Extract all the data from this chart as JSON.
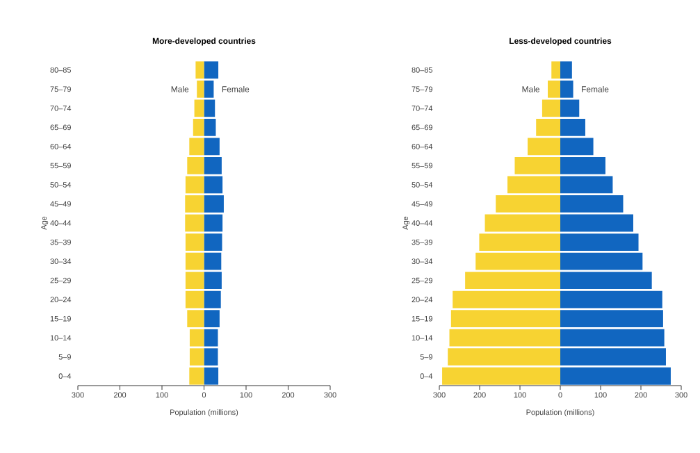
{
  "chart_data": [
    {
      "type": "bar",
      "orientation": "horizontal",
      "stacked": true,
      "title": "More-developed countries",
      "xlabel": "Population (millions)",
      "ylabel": "Age",
      "categories": [
        "80–85",
        "75–79",
        "70–74",
        "65–69",
        "60–64",
        "55–59",
        "50–54",
        "45–49",
        "40–44",
        "35–39",
        "30–34",
        "25–29",
        "20–24",
        "15–19",
        "10–14",
        "5–9",
        "0–4"
      ],
      "series": [
        {
          "name": "Male",
          "color": "#f7d332",
          "values": [
            -20,
            -17,
            -23,
            -26,
            -35,
            -40,
            -44,
            -45,
            -45,
            -44,
            -44,
            -44,
            -44,
            -40,
            -34,
            -34,
            -35
          ]
        },
        {
          "name": "Female",
          "color": "#1166c0",
          "values": [
            34,
            23,
            26,
            28,
            37,
            42,
            44,
            47,
            44,
            43,
            41,
            42,
            40,
            37,
            33,
            33,
            34
          ]
        }
      ],
      "xlim": [
        -300,
        300
      ],
      "xticks": [
        {
          "value": -300,
          "label": "300"
        },
        {
          "value": -200,
          "label": "200"
        },
        {
          "value": -100,
          "label": "100"
        },
        0,
        100,
        200,
        300
      ]
    },
    {
      "type": "bar",
      "orientation": "horizontal",
      "stacked": true,
      "title": "Less-developed countries",
      "xlabel": "Population (millions)",
      "ylabel": "Age",
      "categories": [
        "80–85",
        "75–79",
        "70–74",
        "65–69",
        "60–64",
        "55–59",
        "50–54",
        "45–49",
        "40–44",
        "35–39",
        "30–34",
        "25–29",
        "20–24",
        "15–19",
        "10–14",
        "5–9",
        "0–4"
      ],
      "series": [
        {
          "name": "Male",
          "color": "#f7d332",
          "values": [
            -22,
            -31,
            -45,
            -60,
            -81,
            -113,
            -131,
            -160,
            -187,
            -201,
            -210,
            -236,
            -267,
            -271,
            -275,
            -279,
            -293
          ]
        },
        {
          "name": "Female",
          "color": "#1166c0",
          "values": [
            29,
            32,
            47,
            62,
            82,
            112,
            130,
            156,
            181,
            194,
            204,
            227,
            253,
            255,
            258,
            262,
            274
          ]
        }
      ],
      "xlim": [
        -300,
        300
      ],
      "xticks": [
        {
          "value": -300,
          "label": "300"
        },
        {
          "value": -200,
          "label": "200"
        },
        {
          "value": -100,
          "label": "100"
        },
        0,
        100,
        200,
        300
      ]
    }
  ]
}
